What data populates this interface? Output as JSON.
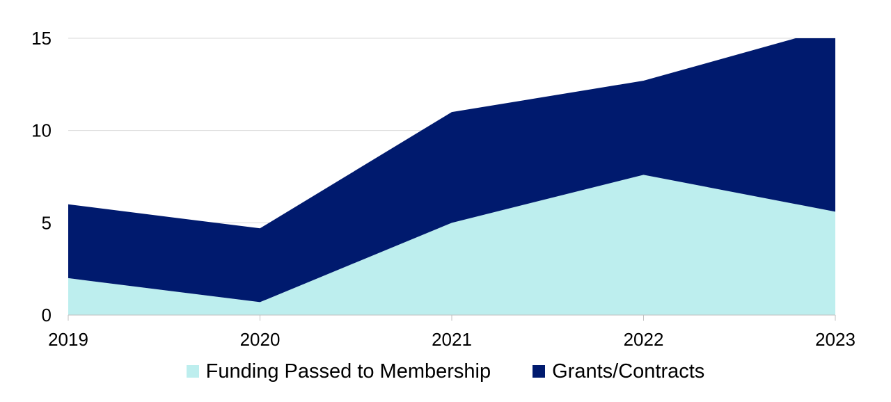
{
  "chart_data": {
    "type": "area",
    "stacked": true,
    "x": [
      "2019",
      "2020",
      "2021",
      "2022",
      "2023"
    ],
    "series": [
      {
        "name": "Funding Passed to Membership",
        "values": [
          2.0,
          0.7,
          5.0,
          7.6,
          5.6
        ],
        "color": "#bdeeee"
      },
      {
        "name": "Grants/Contracts",
        "values": [
          4.0,
          4.0,
          6.0,
          5.1,
          10.0
        ],
        "color": "#001a6e"
      }
    ],
    "ylim": [
      0,
      15
    ],
    "yticks": [
      "0",
      "5",
      "10",
      "15"
    ],
    "grid": true,
    "legend_position": "bottom",
    "title": "",
    "xlabel": "",
    "ylabel": ""
  }
}
